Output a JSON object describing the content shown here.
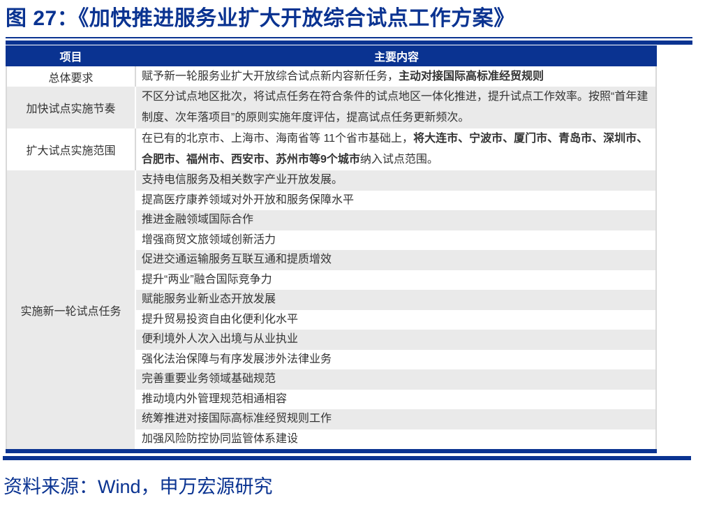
{
  "page": {
    "title": "图 27：《加快推进服务业扩大开放综合试点工作方案》",
    "source": "资料来源：Wind，申万宏源研究"
  },
  "colors": {
    "navy": "#0A3391",
    "row_gray": "#EAEAEA",
    "border_gray": "#D9D9D9",
    "body_text": "#333333",
    "header_text": "#FFFFFF"
  },
  "table": {
    "headers": [
      "项目",
      "主要内容"
    ],
    "rows": [
      {
        "label": "总体要求",
        "text_normal": "赋予新一轮服务业扩大开放综合试点新内容新任务，",
        "text_bold": "主动对接国际高标准经贸规则",
        "text_after": ""
      },
      {
        "label": "加快试点实施节奏",
        "text_normal": "不区分试点地区批次，将试点任务在符合条件的试点地区一体化推进，提升试点工作效率。按照“首年建制度、次年落项目”的原则实施年度评估，提高试点任务更新频次。"
      },
      {
        "label": "扩大试点实施范围",
        "text_normal": "在已有的北京市、上海市、海南省等 11个省市基础上，",
        "text_bold": "将大连市、宁波市、厦门市、青岛市、深圳市、合肥市、福州市、西安市、苏州市等9个城市",
        "text_after": "纳入试点范围。"
      },
      {
        "label": "实施新一轮试点任务",
        "tasks": [
          "支持电信服务及相关数字产业开放发展。",
          "提高医疗康养领域对外开放和服务保障水平",
          "推进金融领域国际合作",
          "增强商贸文旅领域创新活力",
          "促进交通运输服务互联互通和提质增效",
          "提升“两业”融合国际竞争力",
          "赋能服务业新业态开放发展",
          "提升贸易投资自由化便利化水平",
          "便利境外人次入出境与从业执业",
          "强化法治保障与有序发展涉外法律业务",
          "完善重要业务领域基础规范",
          "推动境内外管理规范相通相容",
          "统筹推进对接国际高标准经贸规则工作",
          "加强风险防控协同监管体系建设"
        ]
      }
    ]
  }
}
